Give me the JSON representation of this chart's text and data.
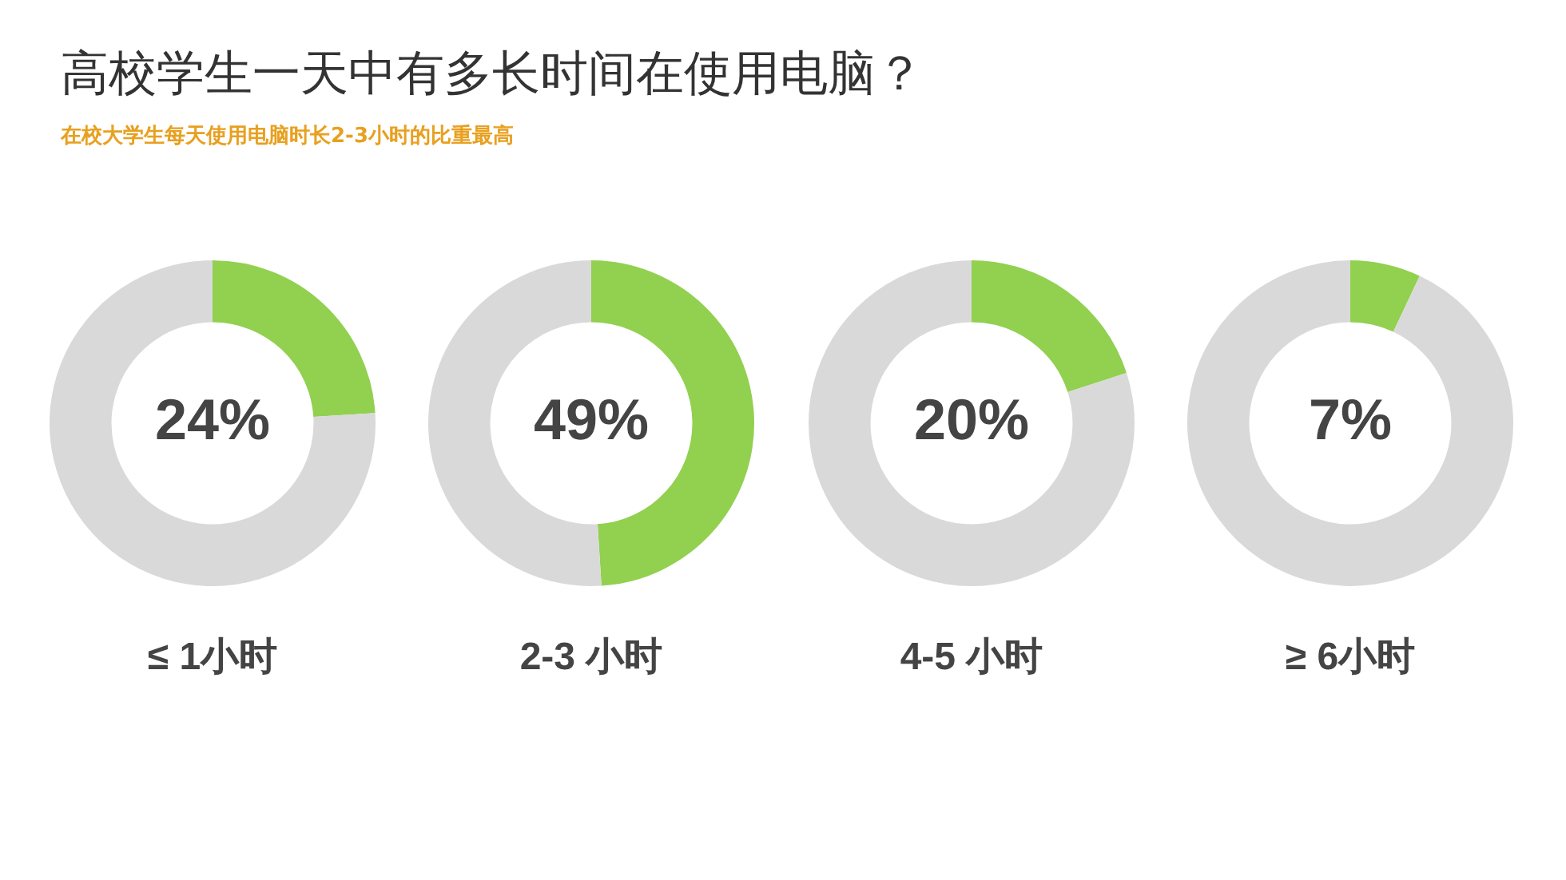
{
  "chart_data": [
    {
      "type": "donut",
      "title": "高校学生一天中有多长时间在使用电脑？",
      "subtitle": "在校大学生每天使用电脑时长2-3小时的比重最高",
      "xlabel": "≤ 1小时",
      "categories": [
        null,
        null
      ],
      "values": [
        24,
        76
      ],
      "colors": [
        "#92d050",
        "#d9d9d9"
      ],
      "value_labels": [
        "24%",
        null
      ]
    },
    {
      "type": "donut",
      "xlabel": "2-3 小时",
      "categories": [
        null,
        null
      ],
      "values": [
        49,
        51
      ],
      "colors": [
        "#92d050",
        "#d9d9d9"
      ],
      "value_labels": [
        "49%",
        null
      ]
    },
    {
      "type": "donut",
      "xlabel": "4-5 小时",
      "categories": [
        null,
        null
      ],
      "values": [
        20,
        80
      ],
      "colors": [
        "#92d050",
        "#d9d9d9"
      ],
      "value_labels": [
        "20%",
        null
      ]
    },
    {
      "type": "donut",
      "xlabel": "≥ 6小时",
      "categories": [
        null,
        null
      ],
      "values": [
        7,
        93
      ],
      "colors": [
        "#92d050",
        "#d9d9d9"
      ],
      "value_labels": [
        "7%",
        null
      ]
    }
  ]
}
